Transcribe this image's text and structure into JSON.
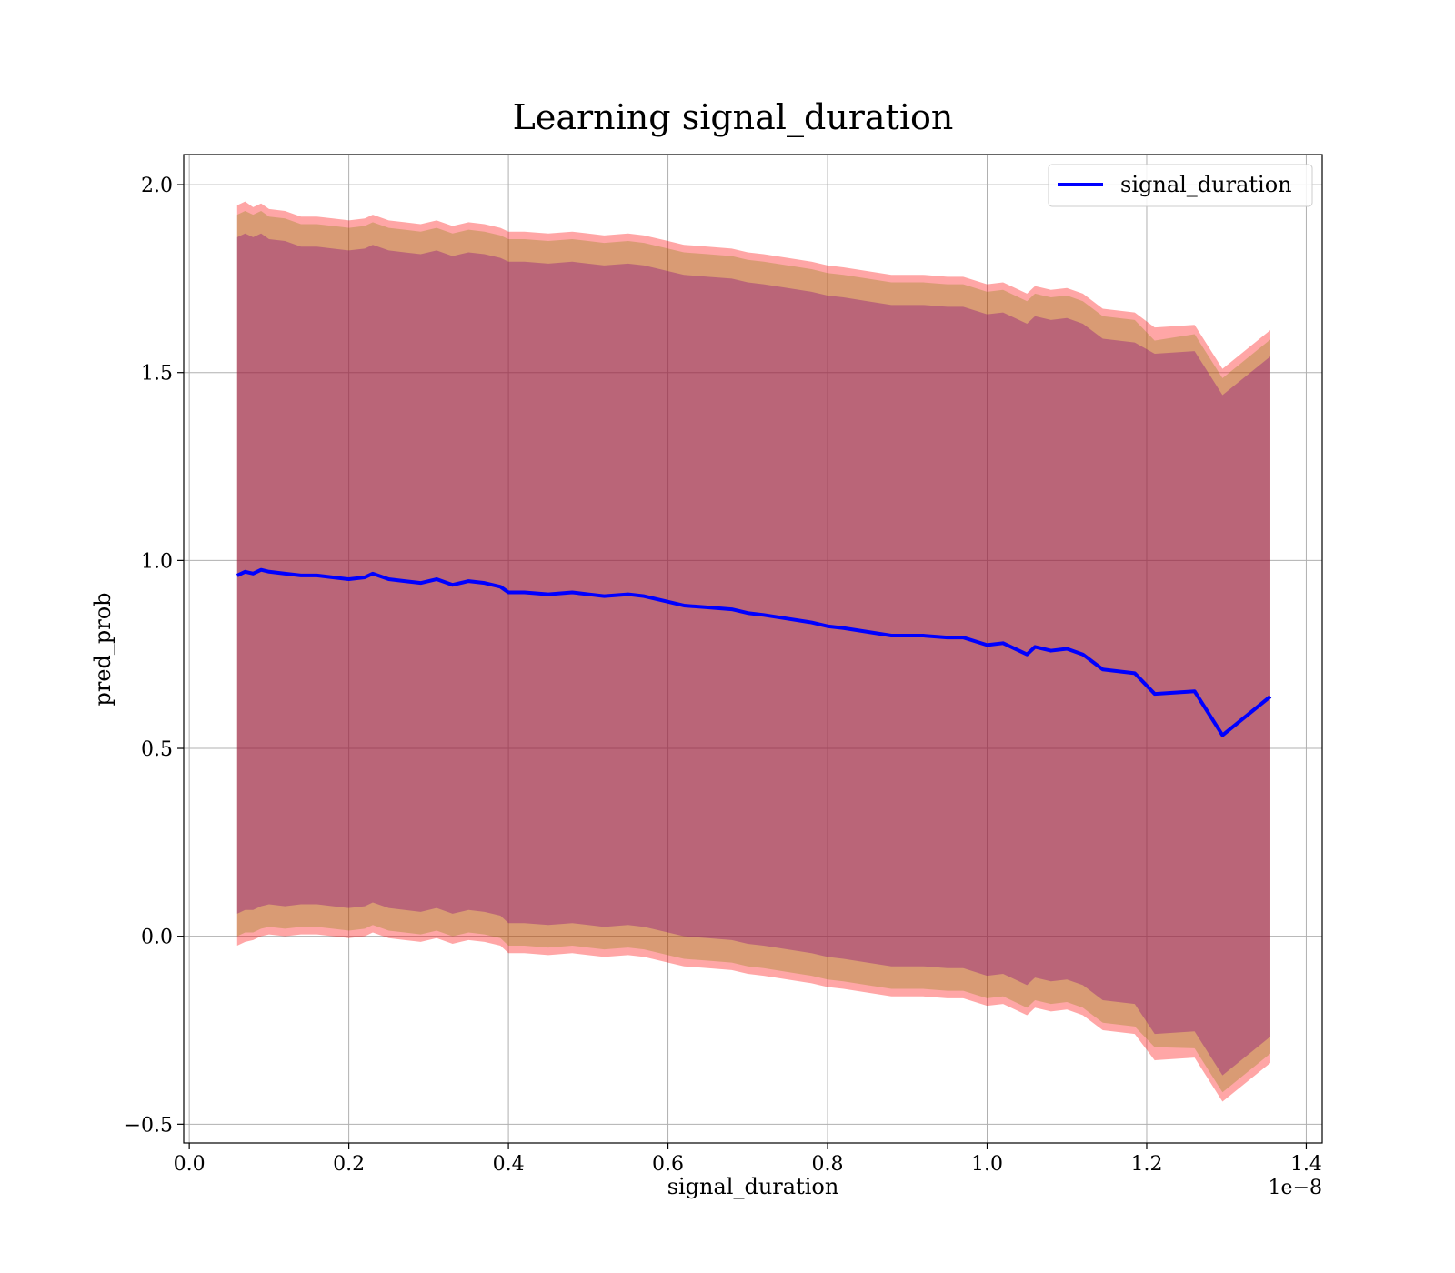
{
  "chart_data": {
    "type": "line",
    "title": "Learning signal_duration",
    "xlabel": "signal_duration",
    "ylabel": "pred_prob",
    "x_offset_label": "1e−8",
    "xlim": [
      -0.007,
      1.42
    ],
    "ylim": [
      -0.55,
      2.08
    ],
    "x_ticks": [
      0.0,
      0.2,
      0.4,
      0.6,
      0.8,
      1.0,
      1.2,
      1.4
    ],
    "x_tick_labels": [
      "0.0",
      "0.2",
      "0.4",
      "0.6",
      "0.8",
      "1.0",
      "1.2",
      "1.4"
    ],
    "y_ticks": [
      -0.5,
      0.0,
      0.5,
      1.0,
      1.5,
      2.0
    ],
    "y_tick_labels": [
      "−0.5",
      "0.0",
      "0.5",
      "1.0",
      "1.5",
      "2.0"
    ],
    "grid": true,
    "legend_position": "top-right",
    "series": [
      {
        "name": "signal_duration",
        "color": "#0000ff",
        "x": [
          0.06,
          0.07,
          0.08,
          0.09,
          0.1,
          0.12,
          0.14,
          0.16,
          0.18,
          0.2,
          0.22,
          0.23,
          0.25,
          0.27,
          0.29,
          0.31,
          0.33,
          0.35,
          0.37,
          0.39,
          0.4,
          0.42,
          0.45,
          0.48,
          0.5,
          0.52,
          0.55,
          0.57,
          0.6,
          0.62,
          0.65,
          0.68,
          0.7,
          0.72,
          0.75,
          0.78,
          0.8,
          0.82,
          0.85,
          0.88,
          0.9,
          0.92,
          0.95,
          0.97,
          1.0,
          1.02,
          1.05,
          1.06,
          1.08,
          1.1,
          1.12,
          1.145,
          1.185,
          1.21,
          1.26,
          1.295,
          1.355
        ],
        "y": [
          0.96,
          0.97,
          0.965,
          0.975,
          0.97,
          0.965,
          0.96,
          0.96,
          0.955,
          0.95,
          0.955,
          0.965,
          0.95,
          0.945,
          0.94,
          0.95,
          0.935,
          0.945,
          0.94,
          0.93,
          0.915,
          0.915,
          0.91,
          0.915,
          0.91,
          0.905,
          0.91,
          0.905,
          0.89,
          0.88,
          0.875,
          0.87,
          0.86,
          0.855,
          0.845,
          0.835,
          0.825,
          0.82,
          0.81,
          0.8,
          0.8,
          0.8,
          0.795,
          0.795,
          0.775,
          0.78,
          0.75,
          0.77,
          0.76,
          0.765,
          0.75,
          0.71,
          0.7,
          0.645,
          0.652,
          0.535,
          0.638
        ]
      }
    ],
    "bands": [
      {
        "color": "#ff0000",
        "opacity": 0.35,
        "halfwidth": [
          0.985,
          0.985,
          0.975,
          0.975,
          0.965,
          0.965,
          0.955,
          0.955,
          0.955,
          0.955,
          0.955,
          0.955,
          0.955,
          0.955,
          0.955,
          0.955,
          0.955,
          0.955,
          0.955,
          0.955,
          0.96,
          0.96,
          0.96,
          0.96,
          0.96,
          0.96,
          0.96,
          0.96,
          0.96,
          0.96,
          0.96,
          0.96,
          0.96,
          0.96,
          0.96,
          0.96,
          0.96,
          0.96,
          0.96,
          0.96,
          0.96,
          0.96,
          0.96,
          0.96,
          0.96,
          0.96,
          0.96,
          0.96,
          0.96,
          0.96,
          0.96,
          0.96,
          0.96,
          0.975,
          0.975,
          0.975,
          0.975
        ]
      },
      {
        "color": "#808000",
        "opacity": 0.3,
        "halfwidth": [
          0.96,
          0.96,
          0.955,
          0.955,
          0.945,
          0.945,
          0.935,
          0.935,
          0.935,
          0.935,
          0.935,
          0.935,
          0.935,
          0.935,
          0.935,
          0.935,
          0.935,
          0.935,
          0.935,
          0.935,
          0.94,
          0.94,
          0.94,
          0.94,
          0.94,
          0.94,
          0.94,
          0.94,
          0.94,
          0.94,
          0.94,
          0.94,
          0.94,
          0.94,
          0.94,
          0.94,
          0.94,
          0.94,
          0.94,
          0.94,
          0.94,
          0.94,
          0.94,
          0.94,
          0.94,
          0.94,
          0.94,
          0.94,
          0.94,
          0.94,
          0.94,
          0.94,
          0.94,
          0.94,
          0.95,
          0.95,
          0.95
        ]
      },
      {
        "color": "#800080",
        "opacity": 0.35,
        "halfwidth": [
          0.9,
          0.9,
          0.895,
          0.895,
          0.885,
          0.885,
          0.875,
          0.875,
          0.875,
          0.875,
          0.875,
          0.875,
          0.875,
          0.875,
          0.875,
          0.875,
          0.875,
          0.875,
          0.875,
          0.875,
          0.88,
          0.88,
          0.88,
          0.88,
          0.88,
          0.88,
          0.88,
          0.88,
          0.88,
          0.88,
          0.88,
          0.88,
          0.88,
          0.88,
          0.88,
          0.88,
          0.88,
          0.88,
          0.88,
          0.88,
          0.88,
          0.88,
          0.88,
          0.88,
          0.88,
          0.88,
          0.88,
          0.88,
          0.88,
          0.88,
          0.88,
          0.88,
          0.88,
          0.905,
          0.905,
          0.905,
          0.905
        ]
      }
    ]
  }
}
